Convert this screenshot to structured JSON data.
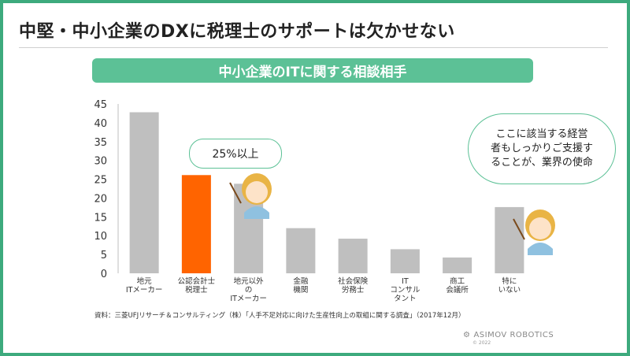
{
  "page": {
    "title": "中堅・中小企業のDXに税理士のサポートは欠かせない",
    "banner": "中小企業のITに関する相談相手",
    "source": "資料：三菱UFJリサーチ＆コンサルティング（株）「人手不足対応に向けた生産性向上の取組に関する調査」（2017年12月）",
    "logo": "ASIMOV ROBOTICS",
    "logo_copyright": "© 2022",
    "callout_left": "25%以上",
    "callout_right": "ここに該当する経営\n者もしっかりご支援す\nることが、業界の使命"
  },
  "colors": {
    "frame": "#3daa7d",
    "banner": "#5cc196",
    "bar_default": "#bfbfbf",
    "bar_highlight": "#ff6400"
  },
  "chart_data": {
    "type": "bar",
    "categories": [
      [
        "地元",
        "ITメーカー"
      ],
      [
        "公認会計士",
        "税理士"
      ],
      [
        "地元以外",
        "の",
        "ITメーカー"
      ],
      [
        "金融",
        "機関"
      ],
      [
        "社会保険",
        "労務士"
      ],
      [
        "IT",
        "コンサル",
        "タント"
      ],
      [
        "商工",
        "会議所"
      ],
      [
        "特に",
        "いない"
      ]
    ],
    "values": [
      42.8,
      26.1,
      23.8,
      12.0,
      9.2,
      6.4,
      4.2,
      17.6
    ],
    "highlight_index": 1,
    "ylim": [
      0,
      45
    ],
    "yticks": [
      0,
      5,
      10,
      15,
      20,
      25,
      30,
      35,
      40,
      45
    ],
    "grid": false
  }
}
